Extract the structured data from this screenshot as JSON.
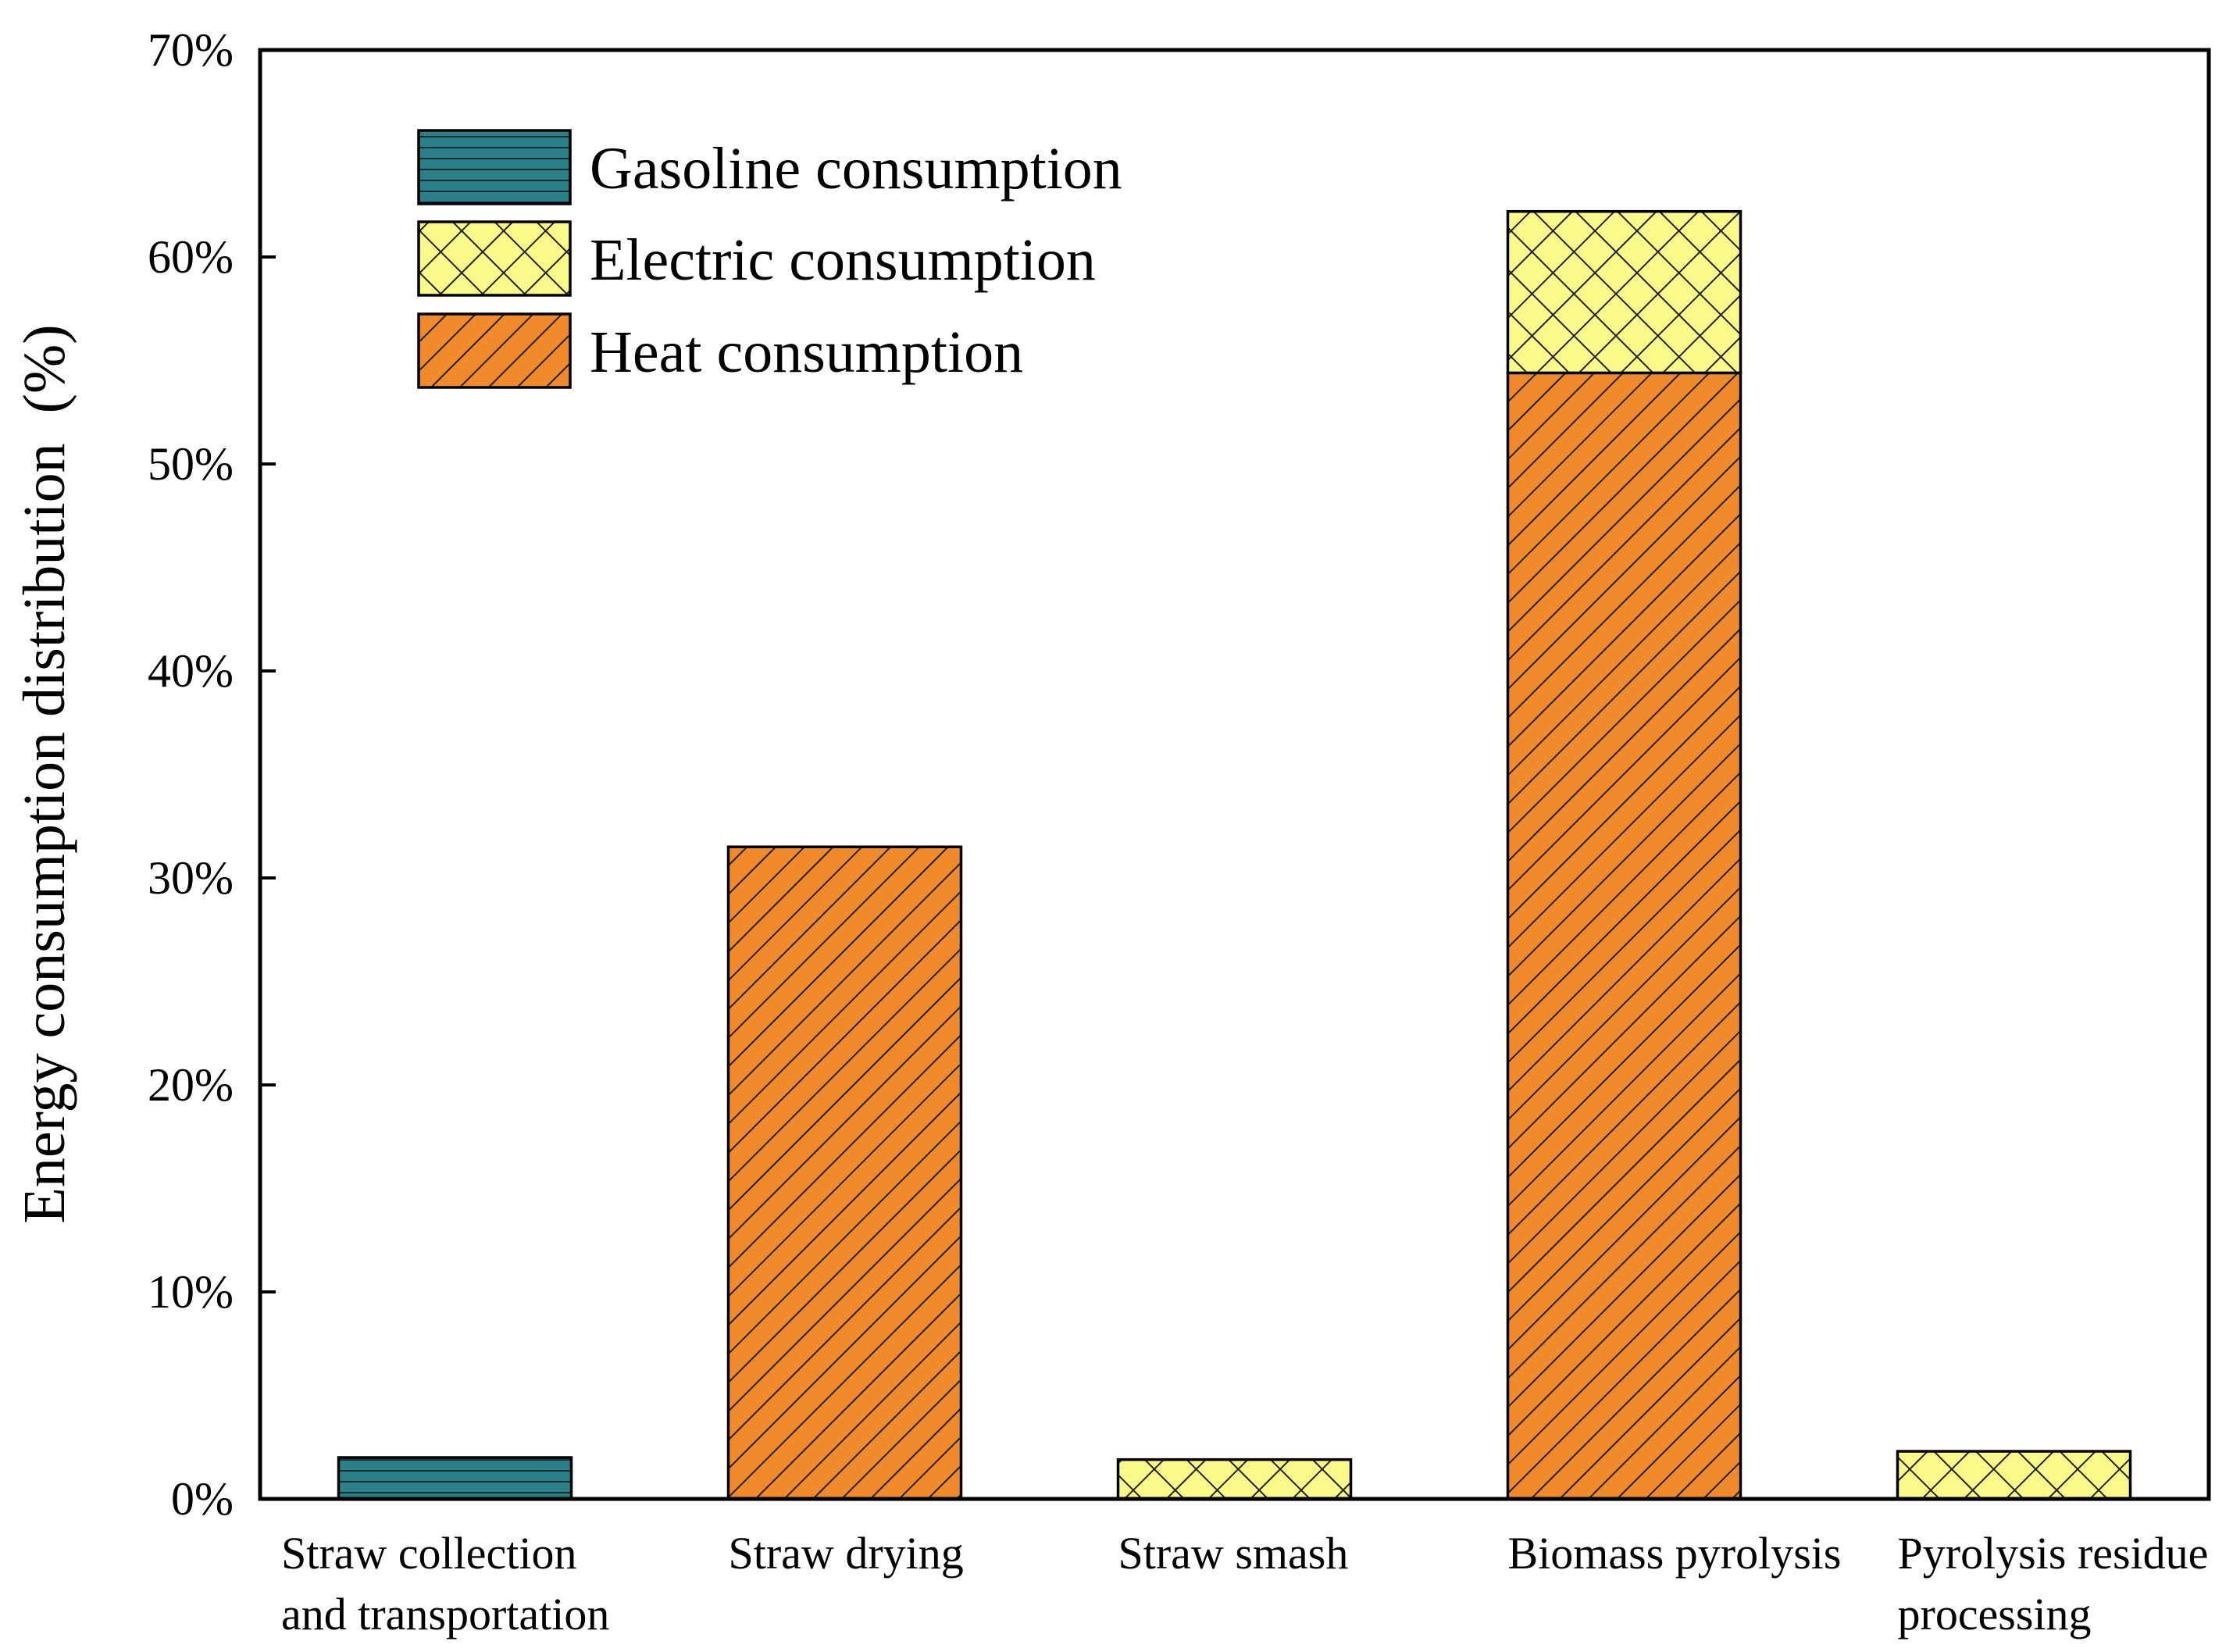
{
  "chart_data": {
    "type": "bar",
    "stacked": true,
    "title": "",
    "xlabel": "",
    "ylabel": "Energy consumption distribution  (%)",
    "ylim": [
      0,
      70
    ],
    "yticks": [
      "0%",
      "10%",
      "20%",
      "30%",
      "40%",
      "50%",
      "60%",
      "70%"
    ],
    "categories": [
      [
        "Straw collection",
        "and transportation"
      ],
      [
        "Straw drying"
      ],
      [
        "Straw smash"
      ],
      [
        "Biomass pyrolysis"
      ],
      [
        "Pyrolysis residue",
        "processing"
      ]
    ],
    "series": [
      {
        "name": "Gasoline consumption",
        "key": "gasoline",
        "color": "#2a8088",
        "values": [
          2.0,
          0,
          0,
          0,
          0
        ]
      },
      {
        "name": "Heat consumption",
        "key": "heat",
        "color": "#f08a2a",
        "values": [
          0,
          31.5,
          0,
          54.4,
          0
        ]
      },
      {
        "name": "Electric consumption",
        "key": "electric",
        "color": "#fafa8a",
        "values": [
          0,
          0,
          1.9,
          7.8,
          2.3
        ]
      }
    ],
    "legend": {
      "position": "top-left",
      "order": [
        "gasoline",
        "electric",
        "heat"
      ]
    },
    "grid": false
  }
}
